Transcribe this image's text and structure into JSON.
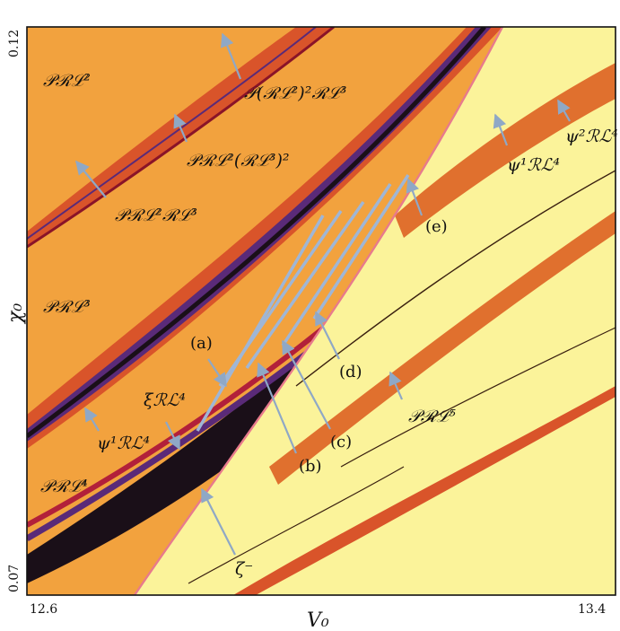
{
  "chart_data": {
    "type": "area",
    "title": "",
    "xlabel": "V₀",
    "ylabel": "χ₀",
    "xlim": [
      12.6,
      13.4
    ],
    "ylim": [
      0.07,
      0.12
    ],
    "x_ticks": [
      "12.6",
      "13.4"
    ],
    "y_ticks": [
      "0.07",
      "0.12"
    ],
    "grid": false,
    "legend": "none",
    "colors": {
      "orange_region": "#f2a23e",
      "red_band": "#d9542a",
      "dark_band": "#1a0f18",
      "purple_band": "#5a2a78",
      "crimson_band": "#b2203a",
      "yellow_region": "#fbf39a",
      "scan_line": "#9fb6d6",
      "zeta_curve": "#e87a8c"
    },
    "region_labels": [
      {
        "id": "P_RL2",
        "text": "𝒫ℛℒ²"
      },
      {
        "id": "P_RL2RL3",
        "text": "𝒫ℛℒ²ℛℒ³"
      },
      {
        "id": "P_RL2RL3_2",
        "text": "𝒫ℛℒ²(ℛℒ³)²"
      },
      {
        "id": "P_RL2_2RL3",
        "text": "𝒫(ℛℒ²)²ℛℒ³"
      },
      {
        "id": "P_RL3",
        "text": "𝒫ℛℒ³"
      },
      {
        "id": "psi1_RL4_left",
        "text": "ψ¹ℛℒ⁴"
      },
      {
        "id": "xi_RL4",
        "text": "ξℛℒ⁴"
      },
      {
        "id": "P_RL4",
        "text": "𝒫ℛℒ⁴"
      },
      {
        "id": "zeta_minus",
        "text": "ζ⁻"
      },
      {
        "id": "psi1_RL4_right",
        "text": "ψ¹ℛℒ⁴"
      },
      {
        "id": "psi2_RL4",
        "text": "ψ²ℛℒ⁴"
      },
      {
        "id": "P_RL5",
        "text": "𝒫ℛℒ⁵"
      }
    ],
    "scan_labels": [
      "(a)",
      "(b)",
      "(c)",
      "(d)",
      "(e)"
    ]
  }
}
